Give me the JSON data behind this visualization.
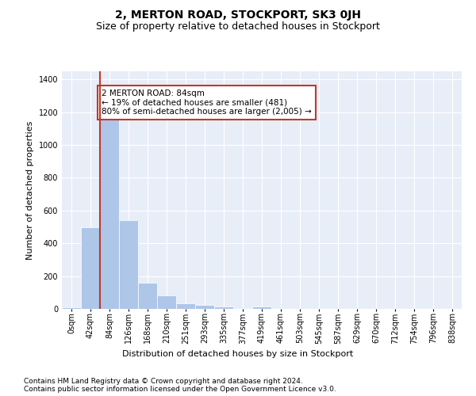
{
  "title": "2, MERTON ROAD, STOCKPORT, SK3 0JH",
  "subtitle": "Size of property relative to detached houses in Stockport",
  "xlabel": "Distribution of detached houses by size in Stockport",
  "ylabel": "Number of detached properties",
  "bar_color": "#aec6e8",
  "highlight_color": "#c0392b",
  "highlight_index": 2,
  "annotation_text": "2 MERTON ROAD: 84sqm\n← 19% of detached houses are smaller (481)\n80% of semi-detached houses are larger (2,005) →",
  "footer_line1": "Contains HM Land Registry data © Crown copyright and database right 2024.",
  "footer_line2": "Contains public sector information licensed under the Open Government Licence v3.0.",
  "bin_labels": [
    "0sqm",
    "42sqm",
    "84sqm",
    "126sqm",
    "168sqm",
    "210sqm",
    "251sqm",
    "293sqm",
    "335sqm",
    "377sqm",
    "419sqm",
    "461sqm",
    "503sqm",
    "545sqm",
    "587sqm",
    "629sqm",
    "670sqm",
    "712sqm",
    "754sqm",
    "796sqm",
    "838sqm"
  ],
  "bar_heights": [
    10,
    500,
    1160,
    540,
    160,
    82,
    33,
    26,
    14,
    0,
    14,
    0,
    0,
    0,
    0,
    0,
    0,
    0,
    0,
    0,
    0
  ],
  "ylim": [
    0,
    1450
  ],
  "yticks": [
    0,
    200,
    400,
    600,
    800,
    1000,
    1200,
    1400
  ],
  "background_color": "#e8eef8",
  "grid_color": "#ffffff",
  "title_fontsize": 10,
  "subtitle_fontsize": 9,
  "axis_label_fontsize": 8,
  "tick_fontsize": 7,
  "footer_fontsize": 6.5
}
